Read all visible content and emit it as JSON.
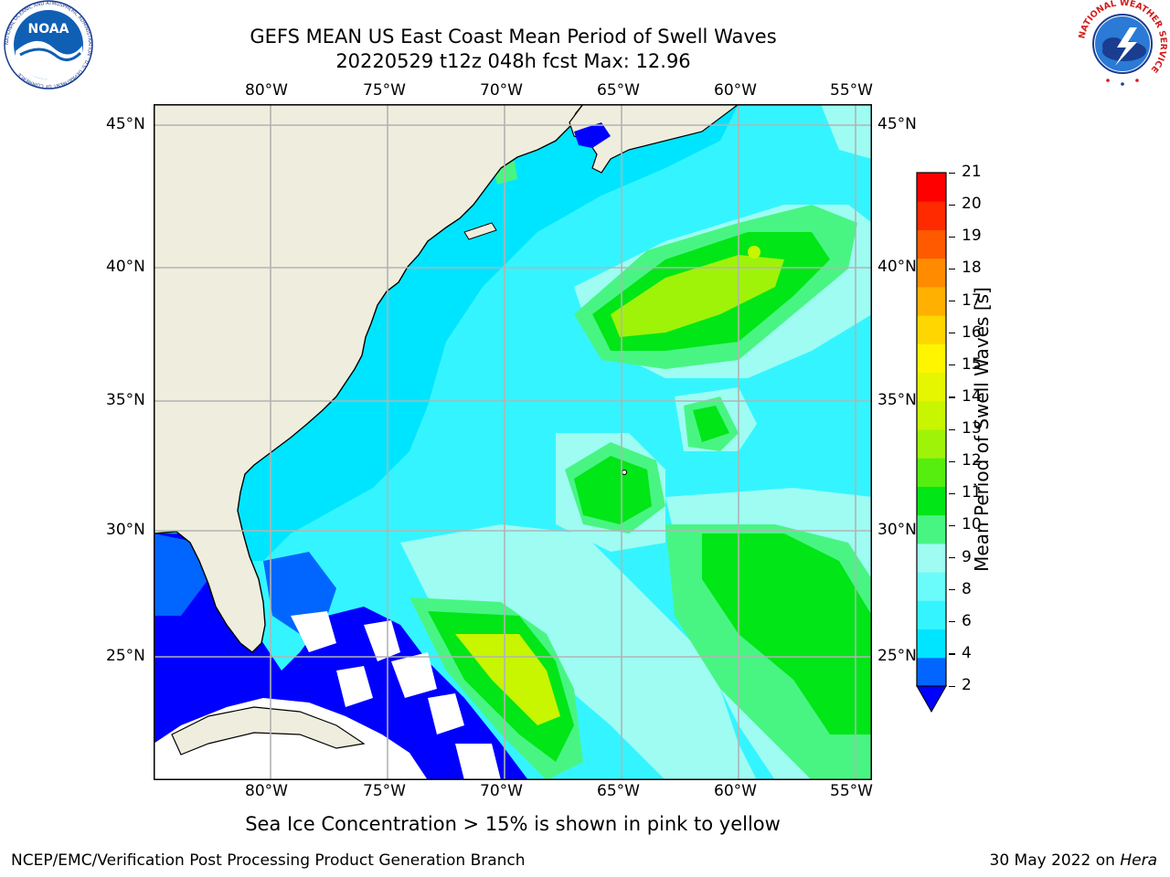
{
  "title": {
    "line1": "GEFS MEAN US East Coast Mean Period of Swell Waves",
    "line2": "20220529 t12z 048h fcst   Max: 12.96"
  },
  "map": {
    "lon_labels": [
      "80°W",
      "75°W",
      "70°W",
      "65°W",
      "60°W",
      "55°W"
    ],
    "lat_labels": [
      "45°N",
      "40°N",
      "35°N",
      "30°N",
      "25°N"
    ],
    "lon_range": [
      -85,
      -55
    ],
    "lat_range": [
      20,
      46
    ],
    "land_color": "#efeddd",
    "coast_color": "#000000",
    "grid_color": "#b3b3b3",
    "undefined_color": "#ffffff",
    "feature_regions": [
      {
        "period_class": "8-9",
        "color": "#9efcf3"
      },
      {
        "period_class": "9-10",
        "color": "#48f583"
      },
      {
        "period_class": "10-11",
        "color": "#00e617"
      },
      {
        "period_class": "12-13",
        "color": "#c8f500"
      },
      {
        "period_class": "2-4",
        "color": "#0000ff"
      }
    ]
  },
  "colorbar": {
    "label": "Mean Period of Swell Waves [s]",
    "ticks": [
      "21",
      "20",
      "19",
      "18",
      "17",
      "16",
      "15",
      "14",
      "13",
      "12",
      "11",
      "10",
      "9",
      "8",
      "6",
      "4",
      "2"
    ],
    "colors_bottom_to_top": [
      "#0066ff",
      "#00e5ff",
      "#34f5ff",
      "#6afcfb",
      "#9efcf3",
      "#48f583",
      "#00e617",
      "#55ee0f",
      "#9ff308",
      "#c8f500",
      "#e6f500",
      "#fff500",
      "#ffd600",
      "#ffb000",
      "#ff8c00",
      "#ff5a00",
      "#ff2a00",
      "#ff0000"
    ],
    "under_color": "#0000ff"
  },
  "note": "Sea Ice Concentration > 15% is shown in pink to yellow",
  "footer": {
    "left": "NCEP/EMC/Verification Post Processing Product Generation Branch",
    "date": "30 May 2022 on",
    "machine": "Hera"
  },
  "logos": {
    "noaa_text": "NOAA",
    "noaa_ring": "NATIONAL OCEANIC AND ATMOSPHERIC ADMINISTRATION · U.S. DEPARTMENT OF COMMERCE",
    "nws_ring": "NATIONAL WEATHER SERVICE"
  }
}
